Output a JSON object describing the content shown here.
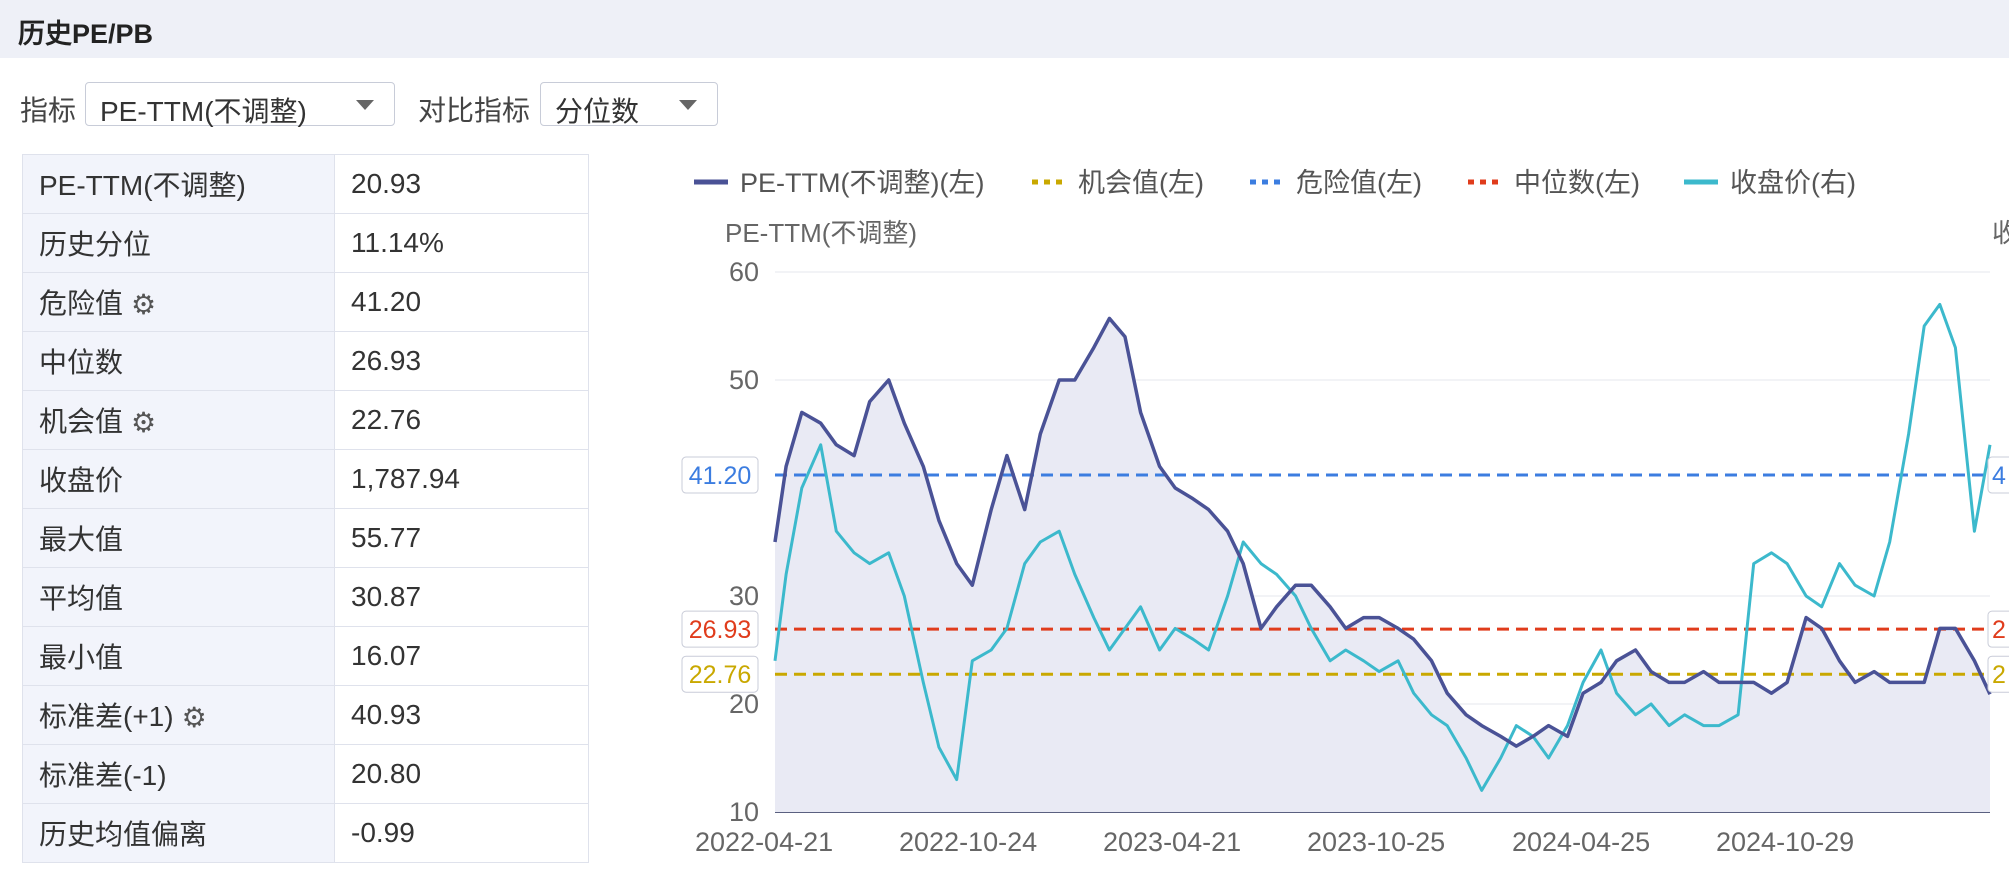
{
  "panel": {
    "title": "历史PE/PB"
  },
  "controls": {
    "indicator_label": "指标",
    "indicator_value": "PE-TTM(不调整)",
    "compare_label": "对比指标",
    "compare_value": "分位数"
  },
  "stats": [
    {
      "label": "PE-TTM(不调整)",
      "value": "20.93",
      "gear": false
    },
    {
      "label": "历史分位",
      "value": "11.14%",
      "gear": false
    },
    {
      "label": "危险值",
      "value": "41.20",
      "gear": true
    },
    {
      "label": "中位数",
      "value": "26.93",
      "gear": false
    },
    {
      "label": "机会值",
      "value": "22.76",
      "gear": true
    },
    {
      "label": "收盘价",
      "value": "1,787.94",
      "gear": false
    },
    {
      "label": "最大值",
      "value": "55.77",
      "gear": false
    },
    {
      "label": "平均值",
      "value": "30.87",
      "gear": false
    },
    {
      "label": "最小值",
      "value": "16.07",
      "gear": false
    },
    {
      "label": "标准差(+1)",
      "value": "40.93",
      "gear": true
    },
    {
      "label": "标准差(-1)",
      "value": "20.80",
      "gear": false
    },
    {
      "label": "历史均值偏离",
      "value": "-0.99",
      "gear": false
    }
  ],
  "colors": {
    "pe": "#4a5296",
    "pe_fill": "#e9eaf4",
    "opportunity": "#c9a800",
    "danger": "#3c7de0",
    "median": "#e03c1c",
    "close": "#3cb9cc",
    "grid": "#e5e7ee",
    "axis_text": "#666666"
  },
  "chart_data": {
    "type": "line",
    "legend": [
      {
        "name": "PE-TTM(不调整)(左)",
        "key": "pe",
        "style": "solid"
      },
      {
        "name": "机会值(左)",
        "key": "opportunity",
        "style": "dotted"
      },
      {
        "name": "危险值(左)",
        "key": "danger",
        "style": "dotted"
      },
      {
        "name": "中位数(左)",
        "key": "median",
        "style": "dotted"
      },
      {
        "name": "收盘价(右)",
        "key": "close",
        "style": "solid"
      }
    ],
    "legend_position": "top",
    "ylabel_left": "PE-TTM(不调整)",
    "ylabel_right_partial": "收",
    "yticks_left": [
      10,
      20,
      30,
      50,
      60
    ],
    "ylim_left": [
      10,
      60
    ],
    "x_tick_labels": [
      "2022-04-21",
      "2022-10-24",
      "2023-04-21",
      "2023-10-25",
      "2024-04-25",
      "2024-10-29"
    ],
    "grid": true,
    "reference_lines": [
      {
        "name": "危险值",
        "value": 41.2,
        "label": "41.20",
        "key": "danger",
        "right_label_partial": "4"
      },
      {
        "name": "中位数",
        "value": 26.93,
        "label": "26.93",
        "key": "median",
        "right_label_partial": "2"
      },
      {
        "name": "机会值",
        "value": 22.76,
        "label": "22.76",
        "key": "opportunity",
        "right_label_partial": "2"
      }
    ],
    "series": [
      {
        "name": "PE-TTM(不调整)",
        "axis": "left",
        "x": [
          "2022-04-21",
          "2022-05-01",
          "2022-05-15",
          "2022-06-01",
          "2022-06-15",
          "2022-07-01",
          "2022-07-15",
          "2022-08-01",
          "2022-08-15",
          "2022-09-01",
          "2022-09-15",
          "2022-10-01",
          "2022-10-15",
          "2022-11-01",
          "2022-11-15",
          "2022-12-01",
          "2022-12-15",
          "2023-01-01",
          "2023-01-15",
          "2023-02-01",
          "2023-02-15",
          "2023-03-01",
          "2023-03-15",
          "2023-04-01",
          "2023-04-15",
          "2023-05-01",
          "2023-05-15",
          "2023-06-01",
          "2023-06-15",
          "2023-07-01",
          "2023-07-15",
          "2023-08-01",
          "2023-08-15",
          "2023-09-01",
          "2023-09-15",
          "2023-10-01",
          "2023-10-15",
          "2023-11-01",
          "2023-11-15",
          "2023-12-01",
          "2023-12-15",
          "2024-01-01",
          "2024-01-15",
          "2024-02-01",
          "2024-02-15",
          "2024-03-01",
          "2024-03-15",
          "2024-04-01",
          "2024-04-15",
          "2024-05-01",
          "2024-05-15",
          "2024-06-01",
          "2024-06-15",
          "2024-07-01",
          "2024-07-15",
          "2024-08-01",
          "2024-08-15",
          "2024-09-01",
          "2024-09-15",
          "2024-10-01",
          "2024-10-15",
          "2024-11-01",
          "2024-11-15",
          "2024-12-01",
          "2024-12-15",
          "2025-01-01",
          "2025-01-15",
          "2025-02-01",
          "2025-02-15",
          "2025-03-01",
          "2025-03-15",
          "2025-04-01",
          "2025-04-15"
        ],
        "values": [
          35,
          42,
          47,
          46,
          44,
          43,
          48,
          50,
          46,
          42,
          37,
          33,
          31,
          38,
          43,
          38,
          45,
          50,
          50,
          53,
          55.7,
          54,
          47,
          42,
          40,
          39,
          38,
          36,
          33,
          27,
          29,
          31,
          31,
          29,
          27,
          28,
          28,
          27,
          26,
          24,
          21,
          19,
          18,
          17,
          16.1,
          17,
          18,
          17,
          21,
          22,
          24,
          25,
          23,
          22,
          22,
          23,
          22,
          22,
          22,
          21,
          22,
          28,
          27,
          24,
          22,
          23,
          22,
          22,
          22,
          27,
          27,
          24,
          20.9
        ]
      },
      {
        "name": "收盘价",
        "axis": "right",
        "x": [
          "2022-04-21",
          "2022-05-01",
          "2022-05-15",
          "2022-06-01",
          "2022-06-15",
          "2022-07-01",
          "2022-07-15",
          "2022-08-01",
          "2022-08-15",
          "2022-09-01",
          "2022-09-15",
          "2022-10-01",
          "2022-10-15",
          "2022-11-01",
          "2022-11-15",
          "2022-12-01",
          "2022-12-15",
          "2023-01-01",
          "2023-01-15",
          "2023-02-01",
          "2023-02-15",
          "2023-03-01",
          "2023-03-15",
          "2023-04-01",
          "2023-04-15",
          "2023-05-01",
          "2023-05-15",
          "2023-06-01",
          "2023-06-15",
          "2023-07-01",
          "2023-07-15",
          "2023-08-01",
          "2023-08-15",
          "2023-09-01",
          "2023-09-15",
          "2023-10-01",
          "2023-10-15",
          "2023-11-01",
          "2023-11-15",
          "2023-12-01",
          "2023-12-15",
          "2024-01-01",
          "2024-01-15",
          "2024-02-01",
          "2024-02-15",
          "2024-03-01",
          "2024-03-15",
          "2024-04-01",
          "2024-04-15",
          "2024-05-01",
          "2024-05-15",
          "2024-06-01",
          "2024-06-15",
          "2024-07-01",
          "2024-07-15",
          "2024-08-01",
          "2024-08-15",
          "2024-09-01",
          "2024-09-15",
          "2024-10-01",
          "2024-10-15",
          "2024-11-01",
          "2024-11-15",
          "2024-12-01",
          "2024-12-15",
          "2025-01-01",
          "2025-01-15",
          "2025-02-01",
          "2025-02-15",
          "2025-03-01",
          "2025-03-15",
          "2025-04-01",
          "2025-04-15"
        ],
        "values": [
          24,
          32,
          40,
          44,
          36,
          34,
          33,
          34,
          30,
          22,
          16,
          13,
          24,
          25,
          27,
          33,
          35,
          36,
          32,
          28,
          25,
          27,
          29,
          25,
          27,
          26,
          25,
          30,
          35,
          33,
          32,
          30,
          27,
          24,
          25,
          24,
          23,
          24,
          21,
          19,
          18,
          15,
          12,
          15,
          18,
          17,
          15,
          18,
          22,
          25,
          21,
          19,
          20,
          18,
          19,
          18,
          18,
          19,
          33,
          34,
          33,
          30,
          29,
          33,
          31,
          30,
          35,
          45,
          55,
          57,
          53,
          36,
          44
        ]
      }
    ]
  }
}
